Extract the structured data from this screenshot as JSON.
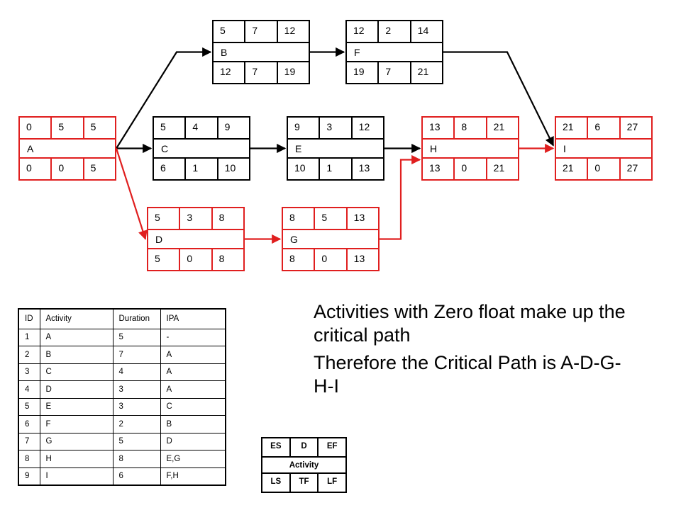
{
  "activities": [
    {
      "id": "A",
      "es": "0",
      "d": "5",
      "ef": "5",
      "ls": "0",
      "tf": "0",
      "lf": "5",
      "critical": true
    },
    {
      "id": "B",
      "es": "5",
      "d": "7",
      "ef": "12",
      "ls": "12",
      "tf": "7",
      "lf": "19",
      "critical": false
    },
    {
      "id": "C",
      "es": "5",
      "d": "4",
      "ef": "9",
      "ls": "6",
      "tf": "1",
      "lf": "10",
      "critical": false
    },
    {
      "id": "D",
      "es": "5",
      "d": "3",
      "ef": "8",
      "ls": "5",
      "tf": "0",
      "lf": "8",
      "critical": true
    },
    {
      "id": "E",
      "es": "9",
      "d": "3",
      "ef": "12",
      "ls": "10",
      "tf": "1",
      "lf": "13",
      "critical": false
    },
    {
      "id": "F",
      "es": "12",
      "d": "2",
      "ef": "14",
      "ls": "19",
      "tf": "7",
      "lf": "21",
      "critical": false
    },
    {
      "id": "G",
      "es": "8",
      "d": "5",
      "ef": "13",
      "ls": "8",
      "tf": "0",
      "lf": "13",
      "critical": true
    },
    {
      "id": "H",
      "es": "13",
      "d": "8",
      "ef": "21",
      "ls": "13",
      "tf": "0",
      "lf": "21",
      "critical": true
    },
    {
      "id": "I",
      "es": "21",
      "d": "6",
      "ef": "27",
      "ls": "21",
      "tf": "0",
      "lf": "27",
      "critical": true
    }
  ],
  "links": [
    {
      "from": "A",
      "to": "B",
      "critical": false
    },
    {
      "from": "A",
      "to": "C",
      "critical": false
    },
    {
      "from": "A",
      "to": "D",
      "critical": true
    },
    {
      "from": "B",
      "to": "F",
      "critical": false
    },
    {
      "from": "C",
      "to": "E",
      "critical": false
    },
    {
      "from": "E",
      "to": "H",
      "critical": false
    },
    {
      "from": "D",
      "to": "G",
      "critical": true
    },
    {
      "from": "G",
      "to": "H",
      "critical": true
    },
    {
      "from": "F",
      "to": "I",
      "critical": false
    },
    {
      "from": "H",
      "to": "I",
      "critical": true
    }
  ],
  "colors": {
    "critical": "#e01f1f",
    "normal": "#000000"
  },
  "table": {
    "headers": [
      "ID",
      "Activity",
      "Duration",
      "IPA"
    ],
    "rows": [
      [
        "1",
        "A",
        "5",
        "-"
      ],
      [
        "2",
        "B",
        "7",
        "A"
      ],
      [
        "3",
        "C",
        "4",
        "A"
      ],
      [
        "4",
        "D",
        "3",
        "A"
      ],
      [
        "5",
        "E",
        "3",
        "C"
      ],
      [
        "6",
        "F",
        "2",
        "B"
      ],
      [
        "7",
        "G",
        "5",
        "D"
      ],
      [
        "8",
        "H",
        "8",
        "E,G"
      ],
      [
        "9",
        "I",
        "6",
        "F,H"
      ]
    ]
  },
  "note": {
    "line1": "Activities with Zero float make up the critical path",
    "line2": "Therefore the Critical Path is A-D-G-H-I"
  },
  "legend": {
    "es": "ES",
    "d": "D",
    "ef": "EF",
    "activity": "Activity",
    "ls": "LS",
    "tf": "TF",
    "lf": "LF"
  }
}
